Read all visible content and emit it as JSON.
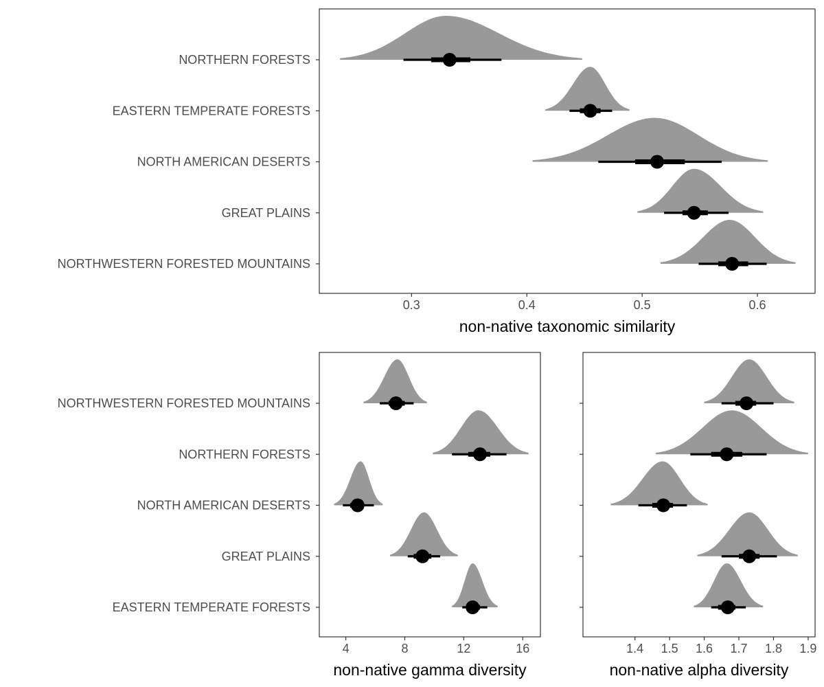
{
  "chart_data": [
    {
      "type": "halfeye",
      "xlabel": "non-native taxonomic similarity",
      "ylabel": "",
      "xlim": [
        0.22,
        0.65
      ],
      "xticks": [
        0.3,
        0.4,
        0.5,
        0.6
      ],
      "xtick_labels": [
        "0.3",
        "0.4",
        "0.5",
        "0.6"
      ],
      "grid": false,
      "categories": [
        "NORTHERN FORESTS",
        "EASTERN TEMPERATE FORESTS",
        "NORTH AMERICAN DESERTS",
        "GREAT PLAINS",
        "NORTHWESTERN FORESTED MOUNTAINS"
      ],
      "point": [
        0.333,
        0.455,
        0.513,
        0.545,
        0.578
      ],
      "interval_66": [
        [
          0.317,
          0.351
        ],
        [
          0.446,
          0.464
        ],
        [
          0.494,
          0.537
        ],
        [
          0.535,
          0.557
        ],
        [
          0.566,
          0.592
        ]
      ],
      "interval_95": [
        [
          0.293,
          0.378
        ],
        [
          0.437,
          0.474
        ],
        [
          0.462,
          0.569
        ],
        [
          0.519,
          0.575
        ],
        [
          0.549,
          0.608
        ]
      ],
      "density_range": [
        [
          0.238,
          0.448
        ],
        [
          0.416,
          0.489
        ],
        [
          0.405,
          0.609
        ],
        [
          0.496,
          0.605
        ],
        [
          0.516,
          0.633
        ]
      ],
      "density_peak": [
        0.33,
        0.455,
        0.511,
        0.545,
        0.576
      ],
      "colors": {
        "density": "#999999",
        "interval": "#000000",
        "point": "#000000",
        "frame": "#333333"
      }
    },
    {
      "type": "halfeye",
      "xlabel": "non-native gamma diversity",
      "ylabel": "",
      "xlim": [
        2.2,
        17.2
      ],
      "xticks": [
        4,
        8,
        12,
        16
      ],
      "xtick_labels": [
        "4",
        "8",
        "12",
        "16"
      ],
      "grid": false,
      "categories": [
        "NORTHWESTERN FORESTED MOUNTAINS",
        "NORTHERN FORESTS",
        "NORTH AMERICAN DESERTS",
        "GREAT PLAINS",
        "EASTERN TEMPERATE FORESTS"
      ],
      "point": [
        7.4,
        13.1,
        4.8,
        9.2,
        12.6
      ],
      "interval_66": [
        [
          6.9,
          8.0
        ],
        [
          12.3,
          13.8
        ],
        [
          4.3,
          5.2
        ],
        [
          8.6,
          9.8
        ],
        [
          12.2,
          13.1
        ]
      ],
      "interval_95": [
        [
          6.3,
          8.6
        ],
        [
          11.2,
          14.9
        ],
        [
          3.8,
          5.9
        ],
        [
          8.2,
          10.4
        ],
        [
          11.9,
          13.6
        ]
      ],
      "density_range": [
        [
          5.2,
          9.5
        ],
        [
          9.9,
          16.4
        ],
        [
          3.2,
          6.5
        ],
        [
          7.0,
          11.6
        ],
        [
          11.2,
          14.3
        ]
      ],
      "density_peak": [
        7.5,
        13.0,
        5.0,
        9.3,
        12.6
      ],
      "colors": {
        "density": "#999999",
        "interval": "#000000",
        "point": "#000000",
        "frame": "#333333"
      }
    },
    {
      "type": "halfeye",
      "xlabel": "non-native alpha diversity",
      "ylabel": "",
      "xlim": [
        1.25,
        1.92
      ],
      "xticks": [
        1.4,
        1.5,
        1.6,
        1.7,
        1.8,
        1.9
      ],
      "xtick_labels": [
        "1.4",
        "1.5",
        "1.6",
        "1.7",
        "1.8",
        "1.9"
      ],
      "grid": false,
      "categories": [
        "NORTHWESTERN FORESTED MOUNTAINS",
        "NORTHERN FORESTS",
        "NORTH AMERICAN DESERTS",
        "GREAT PLAINS",
        "EASTERN TEMPERATE FORESTS"
      ],
      "point": [
        1.722,
        1.665,
        1.482,
        1.73,
        1.668
      ],
      "interval_66": [
        [
          1.69,
          1.75
        ],
        [
          1.62,
          1.71
        ],
        [
          1.45,
          1.51
        ],
        [
          1.7,
          1.76
        ],
        [
          1.64,
          1.69
        ]
      ],
      "interval_95": [
        [
          1.65,
          1.8
        ],
        [
          1.56,
          1.78
        ],
        [
          1.41,
          1.55
        ],
        [
          1.65,
          1.81
        ],
        [
          1.62,
          1.72
        ]
      ],
      "density_range": [
        [
          1.6,
          1.86
        ],
        [
          1.46,
          1.9
        ],
        [
          1.33,
          1.61
        ],
        [
          1.58,
          1.87
        ],
        [
          1.57,
          1.77
        ]
      ],
      "density_peak": [
        1.73,
        1.68,
        1.48,
        1.73,
        1.665
      ],
      "colors": {
        "density": "#999999",
        "interval": "#000000",
        "point": "#000000",
        "frame": "#333333"
      }
    }
  ]
}
